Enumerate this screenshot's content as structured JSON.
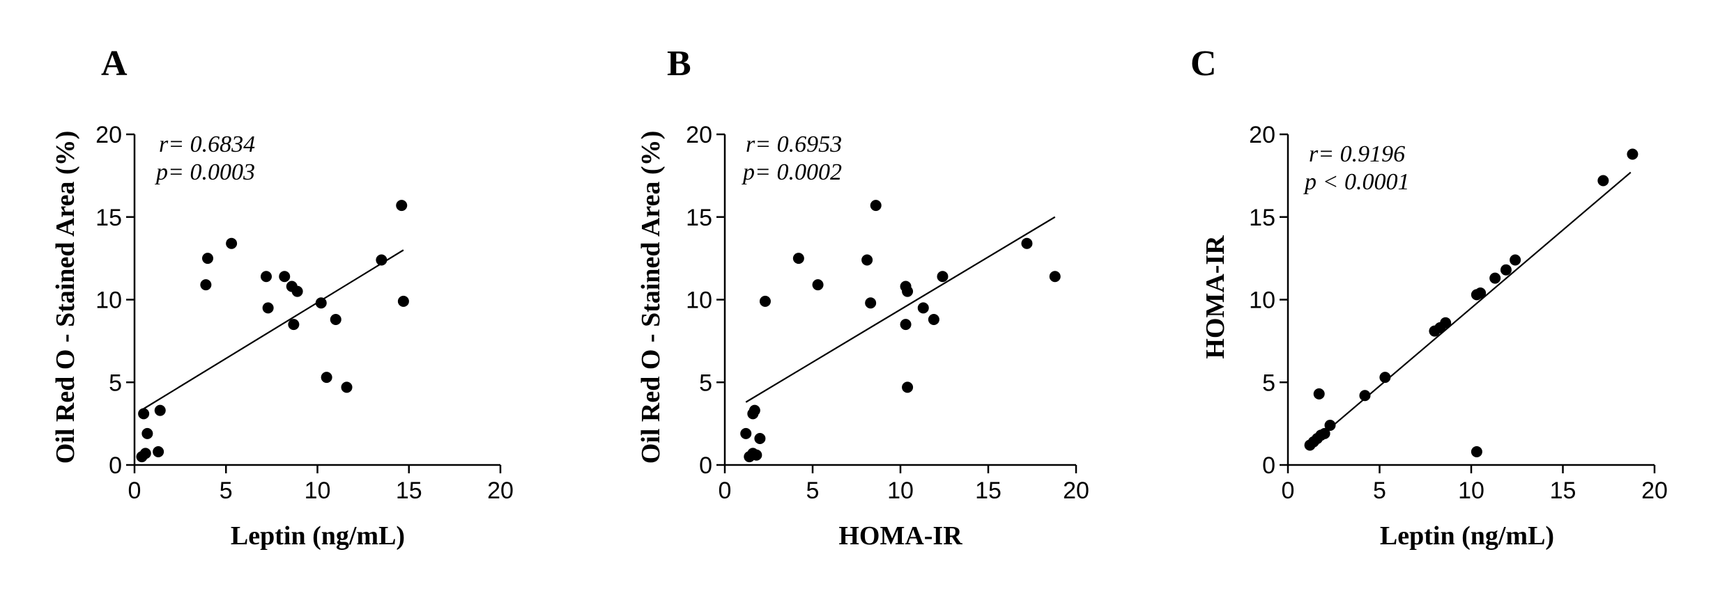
{
  "chart_data": [
    {
      "type": "scatter",
      "panel": "A",
      "xlabel": "Leptin (ng/mL)",
      "ylabel": "Oil Red O - Stained Area (%)",
      "xlim": [
        0,
        20
      ],
      "ylim": [
        0,
        20
      ],
      "xticks": [
        "0",
        "5",
        "10",
        "15",
        "20"
      ],
      "yticks": [
        "0",
        "5",
        "10",
        "15",
        "20"
      ],
      "annotation": [
        "r= 0.6834",
        "p= 0.0003"
      ],
      "regression": {
        "x1": 0.5,
        "y1": 3.4,
        "x2": 14.7,
        "y2": 13.0
      },
      "points": [
        {
          "x": 0.5,
          "y": 3.1
        },
        {
          "x": 0.4,
          "y": 0.5
        },
        {
          "x": 0.6,
          "y": 0.7
        },
        {
          "x": 0.7,
          "y": 1.9
        },
        {
          "x": 1.3,
          "y": 0.8
        },
        {
          "x": 1.4,
          "y": 3.3
        },
        {
          "x": 3.9,
          "y": 10.9
        },
        {
          "x": 4.0,
          "y": 12.5
        },
        {
          "x": 5.3,
          "y": 13.4
        },
        {
          "x": 7.2,
          "y": 11.4
        },
        {
          "x": 7.3,
          "y": 9.5
        },
        {
          "x": 8.2,
          "y": 11.4
        },
        {
          "x": 8.6,
          "y": 10.8
        },
        {
          "x": 8.7,
          "y": 8.5
        },
        {
          "x": 8.9,
          "y": 10.5
        },
        {
          "x": 10.2,
          "y": 9.8
        },
        {
          "x": 10.5,
          "y": 5.3
        },
        {
          "x": 11.0,
          "y": 8.8
        },
        {
          "x": 11.6,
          "y": 4.7
        },
        {
          "x": 13.5,
          "y": 12.4
        },
        {
          "x": 14.6,
          "y": 15.7
        },
        {
          "x": 14.7,
          "y": 9.9
        }
      ]
    },
    {
      "type": "scatter",
      "panel": "B",
      "xlabel": "HOMA-IR",
      "ylabel": "Oil Red O - Stained Area (%)",
      "xlim": [
        0,
        20
      ],
      "ylim": [
        0,
        20
      ],
      "xticks": [
        "0",
        "5",
        "10",
        "15",
        "20"
      ],
      "yticks": [
        "0",
        "5",
        "10",
        "15",
        "20"
      ],
      "annotation": [
        "r= 0.6953",
        "p= 0.0002"
      ],
      "regression": {
        "x1": 1.2,
        "y1": 3.8,
        "x2": 18.8,
        "y2": 15.0
      },
      "points": [
        {
          "x": 1.2,
          "y": 1.9
        },
        {
          "x": 1.4,
          "y": 0.5
        },
        {
          "x": 1.6,
          "y": 0.7
        },
        {
          "x": 1.6,
          "y": 3.1
        },
        {
          "x": 1.7,
          "y": 3.3
        },
        {
          "x": 1.8,
          "y": 0.6
        },
        {
          "x": 2.0,
          "y": 1.6
        },
        {
          "x": 2.3,
          "y": 9.9
        },
        {
          "x": 4.2,
          "y": 12.5
        },
        {
          "x": 5.3,
          "y": 10.9
        },
        {
          "x": 8.1,
          "y": 12.4
        },
        {
          "x": 8.3,
          "y": 9.8
        },
        {
          "x": 8.6,
          "y": 15.7
        },
        {
          "x": 10.3,
          "y": 8.5
        },
        {
          "x": 10.3,
          "y": 10.8
        },
        {
          "x": 10.4,
          "y": 10.5
        },
        {
          "x": 10.4,
          "y": 4.7
        },
        {
          "x": 11.3,
          "y": 9.5
        },
        {
          "x": 11.9,
          "y": 8.8
        },
        {
          "x": 12.4,
          "y": 11.4
        },
        {
          "x": 17.2,
          "y": 13.4
        },
        {
          "x": 18.8,
          "y": 11.4
        }
      ]
    },
    {
      "type": "scatter",
      "panel": "C",
      "xlabel": "Leptin (ng/mL)",
      "ylabel": "HOMA-IR",
      "xlim": [
        0,
        20
      ],
      "ylim": [
        0,
        20
      ],
      "xticks": [
        "0",
        "5",
        "10",
        "15",
        "20"
      ],
      "yticks": [
        "0",
        "5",
        "10",
        "15",
        "20"
      ],
      "annotation": [
        "r= 0.9196",
        "p < 0.0001"
      ],
      "regression": {
        "x1": 1.1,
        "y1": 1.1,
        "x2": 18.7,
        "y2": 17.7
      },
      "points": [
        {
          "x": 1.2,
          "y": 1.2
        },
        {
          "x": 1.4,
          "y": 1.4
        },
        {
          "x": 1.6,
          "y": 1.6
        },
        {
          "x": 1.7,
          "y": 4.3
        },
        {
          "x": 1.8,
          "y": 1.8
        },
        {
          "x": 2.0,
          "y": 1.9
        },
        {
          "x": 2.3,
          "y": 2.4
        },
        {
          "x": 4.2,
          "y": 4.2
        },
        {
          "x": 5.3,
          "y": 5.3
        },
        {
          "x": 8.0,
          "y": 8.1
        },
        {
          "x": 8.3,
          "y": 8.3
        },
        {
          "x": 8.6,
          "y": 8.6
        },
        {
          "x": 10.3,
          "y": 0.8
        },
        {
          "x": 10.3,
          "y": 10.3
        },
        {
          "x": 10.5,
          "y": 10.4
        },
        {
          "x": 11.3,
          "y": 11.3
        },
        {
          "x": 11.9,
          "y": 11.8
        },
        {
          "x": 12.4,
          "y": 12.4
        },
        {
          "x": 17.2,
          "y": 17.2
        },
        {
          "x": 18.8,
          "y": 18.8
        }
      ]
    }
  ]
}
